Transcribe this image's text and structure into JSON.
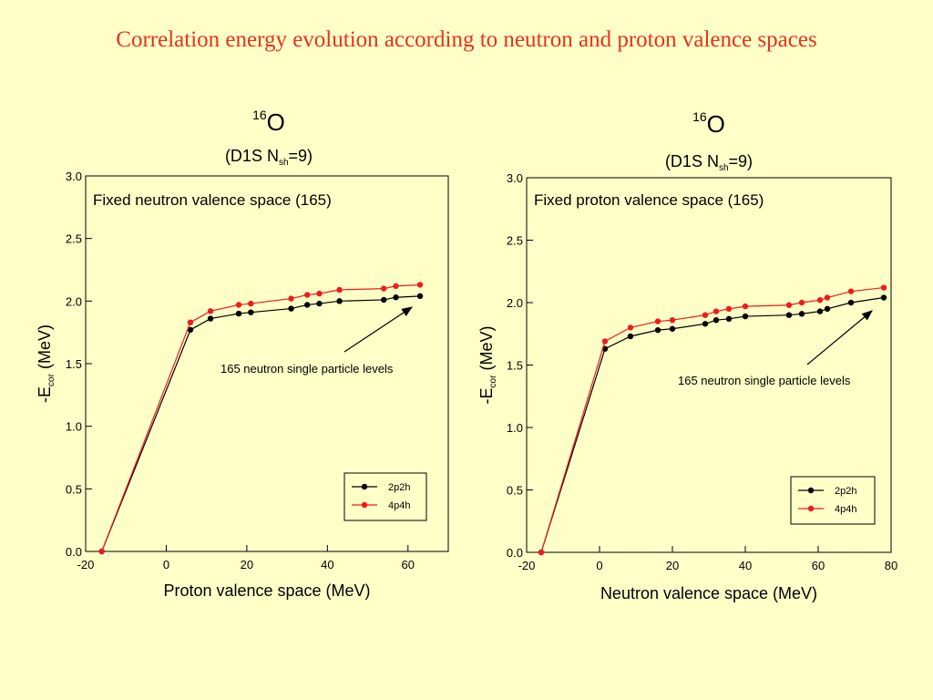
{
  "slide": {
    "title": "Correlation energy evolution according to neutron and proton valence spaces"
  },
  "colors": {
    "background": "#ffffc8",
    "title": "#e8321e",
    "series_2p2h": "#000000",
    "series_4p4h": "#ee1c1c"
  },
  "chart_data": [
    {
      "type": "line",
      "title_sup": "16",
      "title": "O",
      "subtitle_pre": "(D1S  N",
      "subtitle_sub": "sh",
      "subtitle_post": "=9)",
      "annotation_box": "Fixed neutron valence space (165)",
      "arrow_label": "165 neutron single particle levels",
      "xlabel": "Proton valence space (MeV)",
      "ylabel_pre": "-E",
      "ylabel_sub": "cor",
      "ylabel_post": "  (MeV)",
      "xlim": [
        -20,
        70
      ],
      "ylim": [
        0,
        3.0
      ],
      "xticks": [
        -20,
        0,
        20,
        40,
        60
      ],
      "xtick_labels": [
        "-20",
        "0",
        "20",
        "40",
        "60"
      ],
      "yticks": [
        0,
        0.5,
        1.0,
        1.5,
        2.0,
        2.5,
        3.0
      ],
      "ytick_labels": [
        "0.0",
        "0.5",
        "1.0",
        "1.5",
        "2.0",
        "2.5",
        "3.0"
      ],
      "legend_position": "bottom-right",
      "series": [
        {
          "name": "2p2h",
          "x": [
            -16,
            6,
            11,
            18,
            21,
            31,
            35,
            38,
            43,
            54,
            57,
            63
          ],
          "y": [
            0,
            1.77,
            1.86,
            1.9,
            1.91,
            1.94,
            1.97,
            1.98,
            2.0,
            2.01,
            2.03,
            2.04
          ]
        },
        {
          "name": "4p4h",
          "x": [
            -16,
            6,
            11,
            18,
            21,
            31,
            35,
            38,
            43,
            54,
            57,
            63
          ],
          "y": [
            0,
            1.83,
            1.92,
            1.97,
            1.98,
            2.02,
            2.05,
            2.06,
            2.09,
            2.1,
            2.12,
            2.13
          ]
        }
      ]
    },
    {
      "type": "line",
      "title_sup": "16",
      "title": "O",
      "subtitle_pre": "(D1S  N",
      "subtitle_sub": "sh",
      "subtitle_post": "=9)",
      "annotation_box": "Fixed proton valence space (165)",
      "arrow_label": "165 neutron single particle levels",
      "xlabel": "Neutron valence space (MeV)",
      "ylabel_pre": "-E",
      "ylabel_sub": "cor",
      "ylabel_post": "  (MeV)",
      "xlim": [
        -20,
        80
      ],
      "ylim": [
        0,
        3.0
      ],
      "xticks": [
        -20,
        0,
        20,
        40,
        60,
        80
      ],
      "xtick_labels": [
        "-20",
        "0",
        "20",
        "40",
        "60",
        "80"
      ],
      "yticks": [
        0,
        0.5,
        1.0,
        1.5,
        2.0,
        2.5,
        3.0
      ],
      "ytick_labels": [
        "0.0",
        "0.5",
        "1.0",
        "1.5",
        "2.0",
        "2.5",
        "3.0"
      ],
      "legend_position": "bottom-right",
      "series": [
        {
          "name": "2p2h",
          "x": [
            -16,
            1.5,
            8.5,
            16,
            20,
            29,
            32,
            35.5,
            40,
            52,
            55.5,
            60.5,
            62.5,
            69,
            78
          ],
          "y": [
            0,
            1.63,
            1.73,
            1.78,
            1.79,
            1.83,
            1.86,
            1.87,
            1.89,
            1.9,
            1.91,
            1.93,
            1.95,
            2.0,
            2.04
          ]
        },
        {
          "name": "4p4h",
          "x": [
            -16,
            1.5,
            8.5,
            16,
            20,
            29,
            32,
            35.5,
            40,
            52,
            55.5,
            60.5,
            62.5,
            69,
            78
          ],
          "y": [
            0,
            1.69,
            1.8,
            1.85,
            1.86,
            1.9,
            1.93,
            1.95,
            1.97,
            1.98,
            2.0,
            2.02,
            2.04,
            2.09,
            2.12
          ]
        }
      ]
    }
  ]
}
